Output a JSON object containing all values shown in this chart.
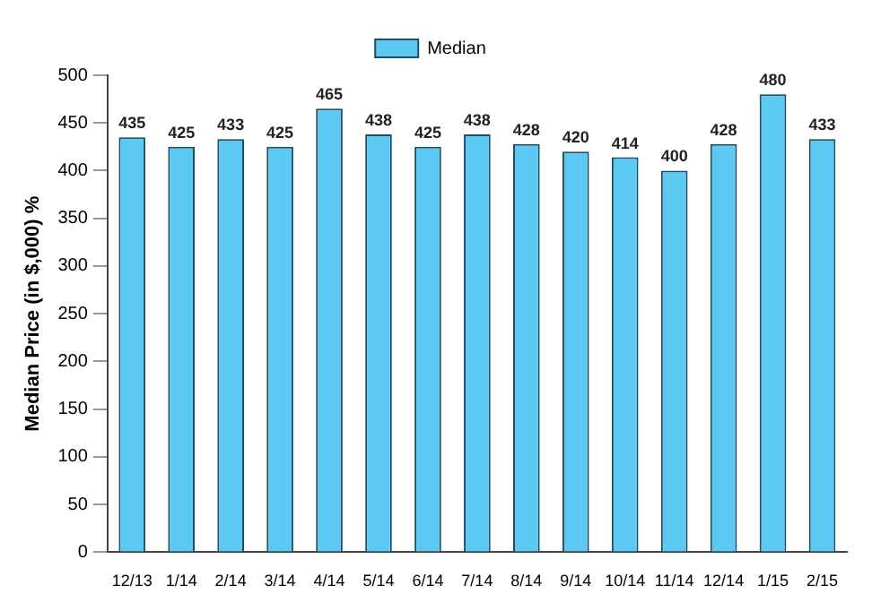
{
  "chart_data": {
    "type": "bar",
    "ylabel": "Median Price (in $,000) %",
    "categories": [
      "12/13",
      "1/14",
      "2/14",
      "3/14",
      "4/14",
      "5/14",
      "6/14",
      "7/14",
      "8/14",
      "9/14",
      "10/14",
      "11/14",
      "12/14",
      "1/15",
      "2/15"
    ],
    "series": [
      {
        "name": "Median",
        "color": "#5bc9f2",
        "values": [
          435,
          425,
          433,
          425,
          465,
          438,
          425,
          438,
          428,
          420,
          414,
          400,
          428,
          480,
          433
        ]
      }
    ],
    "ylim": [
      0,
      500
    ],
    "yticks": [
      0,
      50,
      100,
      150,
      200,
      250,
      300,
      350,
      400,
      450,
      500
    ],
    "grid": false,
    "legend": "top",
    "data_labels": true
  }
}
